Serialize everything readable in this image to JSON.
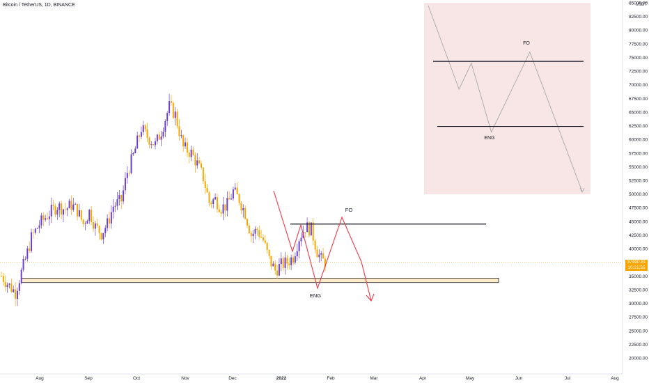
{
  "header": {
    "title": "Bitcoin / TetherUS, 1D, BINANCE"
  },
  "currency": "USDT",
  "price_badge": {
    "price": "37490.81",
    "countdown": "10:21:55"
  },
  "chart_data": {
    "type": "candlestick",
    "title": "Bitcoin / TetherUS, 1D, BINANCE",
    "x_ticks": [
      "Aug",
      "Sep",
      "Oct",
      "Nov",
      "Dec",
      "2022",
      "Feb",
      "Mar",
      "Apr",
      "May",
      "Jun",
      "Jul",
      "Aug"
    ],
    "y_ticks": [
      "20000.00",
      "22500.00",
      "25000.00",
      "27500.00",
      "30000.00",
      "32500.00",
      "35000.00",
      "37500.00",
      "40000.00",
      "42500.00",
      "45000.00",
      "47500.00",
      "50000.00",
      "52500.00",
      "55000.00",
      "57500.00",
      "60000.00",
      "62500.00",
      "65000.00",
      "67500.00",
      "70000.00",
      "72500.00",
      "75000.00",
      "77500.00",
      "80000.00",
      "82500.00",
      "85000.00"
    ],
    "y_unit": "USDT",
    "last_price": 37490.81,
    "price_path": [
      {
        "t": 0,
        "p": 35000
      },
      {
        "t": 4,
        "p": 33200
      },
      {
        "t": 7,
        "p": 32000
      },
      {
        "t": 9,
        "p": 34500
      },
      {
        "t": 12,
        "p": 38000
      },
      {
        "t": 15,
        "p": 42000
      },
      {
        "t": 19,
        "p": 44500
      },
      {
        "t": 24,
        "p": 46500
      },
      {
        "t": 28,
        "p": 47800
      },
      {
        "t": 32,
        "p": 47200
      },
      {
        "t": 35,
        "p": 48000
      },
      {
        "t": 38,
        "p": 47000
      },
      {
        "t": 41,
        "p": 44500
      },
      {
        "t": 44,
        "p": 46800
      },
      {
        "t": 47,
        "p": 44000
      },
      {
        "t": 50,
        "p": 42800
      },
      {
        "t": 53,
        "p": 44500
      },
      {
        "t": 56,
        "p": 47800
      },
      {
        "t": 60,
        "p": 48800
      },
      {
        "t": 63,
        "p": 54000
      },
      {
        "t": 66,
        "p": 57000
      },
      {
        "t": 70,
        "p": 62000
      },
      {
        "t": 73,
        "p": 60500
      },
      {
        "t": 77,
        "p": 59000
      },
      {
        "t": 80,
        "p": 61500
      },
      {
        "t": 84,
        "p": 66000
      },
      {
        "t": 87,
        "p": 64500
      },
      {
        "t": 91,
        "p": 58500
      },
      {
        "t": 95,
        "p": 57500
      },
      {
        "t": 98,
        "p": 55500
      },
      {
        "t": 101,
        "p": 53000
      },
      {
        "t": 104,
        "p": 48500
      },
      {
        "t": 107,
        "p": 49000
      },
      {
        "t": 110,
        "p": 47500
      },
      {
        "t": 113,
        "p": 48000
      },
      {
        "t": 116,
        "p": 50500
      },
      {
        "t": 119,
        "p": 49000
      },
      {
        "t": 122,
        "p": 46500
      },
      {
        "t": 125,
        "p": 42500
      },
      {
        "t": 128,
        "p": 43500
      },
      {
        "t": 131,
        "p": 41500
      },
      {
        "t": 134,
        "p": 38000
      },
      {
        "t": 137,
        "p": 36000
      },
      {
        "t": 140,
        "p": 37000
      },
      {
        "t": 143,
        "p": 37500
      },
      {
        "t": 146,
        "p": 38500
      },
      {
        "t": 149,
        "p": 42000
      },
      {
        "t": 152,
        "p": 44000
      },
      {
        "t": 155,
        "p": 43500
      },
      {
        "t": 158,
        "p": 39500
      },
      {
        "t": 160,
        "p": 38000
      },
      {
        "t": 162,
        "p": 37490.81
      }
    ],
    "annotations": [
      {
        "type": "horizontal-line",
        "name": "resistance-line",
        "price": 44500,
        "t_start": 133,
        "t_end": 222
      },
      {
        "type": "zone",
        "name": "support-zone",
        "price_low": 33800,
        "price_high": 34600,
        "t_start": 10,
        "t_end": 228
      },
      {
        "type": "zigzag",
        "name": "pattern-path",
        "color": "#f23645",
        "points": [
          {
            "t": 124,
            "p": 51000
          },
          {
            "t": 133,
            "p": 40000
          },
          {
            "t": 137,
            "p": 44000
          },
          {
            "t": 145,
            "p": 32500
          },
          {
            "t": 156,
            "p": 46000
          },
          {
            "t": 166,
            "p": 35500
          },
          {
            "t": 170,
            "p": 30000
          }
        ]
      },
      {
        "type": "label",
        "text": "FO",
        "t": 159,
        "p": 47500
      },
      {
        "type": "label",
        "text": "ENG",
        "t": 144,
        "p": 31200
      }
    ],
    "inset": {
      "path": [
        [
          0.0,
          1.0
        ],
        [
          0.2,
          0.55
        ],
        [
          0.28,
          0.69
        ],
        [
          0.41,
          0.32
        ],
        [
          0.66,
          0.75
        ],
        [
          1.0,
          0.0
        ]
      ],
      "top_line_level": 0.7,
      "bottom_line_level": 0.35,
      "labels": [
        {
          "text": "FO",
          "x": 0.62,
          "y": 0.79
        },
        {
          "text": "ENG",
          "x": 0.38,
          "y": 0.28
        }
      ],
      "background": "#f8e6e6"
    },
    "colors": {
      "up": "#6a3fd1",
      "down": "#f7a600",
      "pattern": "#f23645",
      "zone_fill": "#fdebc8",
      "line": "#131722"
    }
  }
}
